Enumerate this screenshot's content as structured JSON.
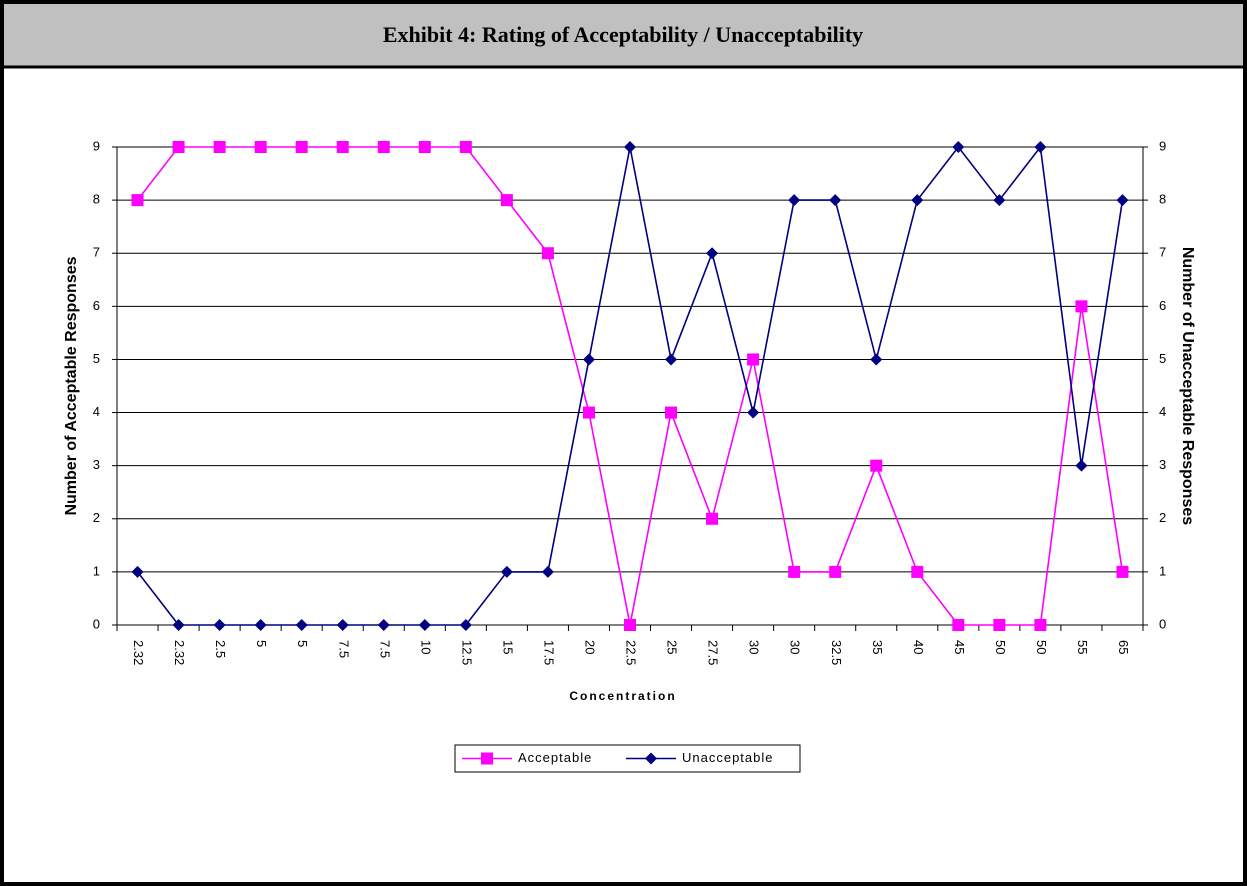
{
  "chart_data": {
    "type": "line",
    "title": "Exhibit 4: Rating of Acceptability / Unacceptability",
    "x_label": "Concentration",
    "y_label": "Number of Acceptable Responses",
    "y2_label": "Number of Unacceptable Responses",
    "categories": [
      "2.32",
      "2.32",
      "2.5",
      "5",
      "5",
      "7.5",
      "7.5",
      "10",
      "12.5",
      "15",
      "17.5",
      "20",
      "22.5",
      "25",
      "27.5",
      "30",
      "30",
      "32.5",
      "35",
      "40",
      "45",
      "50",
      "50",
      "55",
      "65"
    ],
    "series": [
      {
        "name": "Acceptable",
        "color": "#ff00ff",
        "marker": "square",
        "axis": "y",
        "values": [
          8,
          9,
          9,
          9,
          9,
          9,
          9,
          9,
          9,
          8,
          7,
          4,
          0,
          4,
          2,
          5,
          1,
          1,
          3,
          1,
          0,
          0,
          0,
          6,
          1
        ]
      },
      {
        "name": "Unacceptable",
        "color": "#000080",
        "marker": "diamond",
        "axis": "y2",
        "values": [
          1,
          0,
          0,
          0,
          0,
          0,
          0,
          0,
          0,
          1,
          1,
          5,
          9,
          5,
          7,
          4,
          8,
          8,
          5,
          8,
          9,
          8,
          9,
          3,
          8
        ]
      }
    ],
    "ylim": [
      0,
      9
    ],
    "yticks": [
      0,
      1,
      2,
      3,
      4,
      5,
      6,
      7,
      8,
      9
    ],
    "y2lim": [
      0,
      9
    ],
    "y2ticks": [
      0,
      1,
      2,
      3,
      4,
      5,
      6,
      7,
      8,
      9
    ],
    "grid": true,
    "legend": "bottom"
  }
}
